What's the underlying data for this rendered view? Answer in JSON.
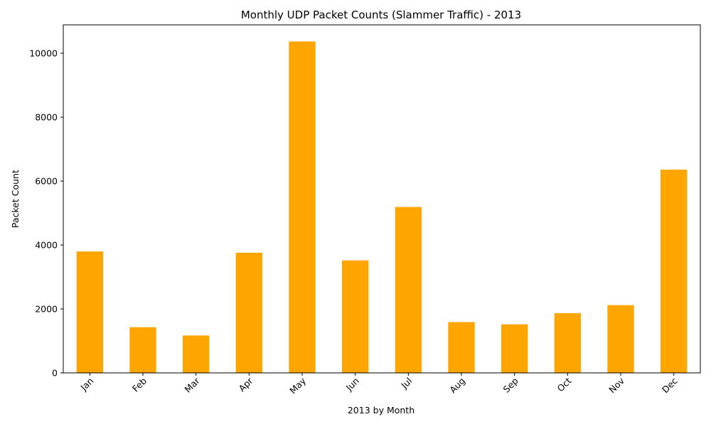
{
  "chart_data": {
    "type": "bar",
    "title": "Monthly UDP Packet Counts (Slammer Traffic) - 2013",
    "xlabel": "2013 by Month",
    "ylabel": "Packet Count",
    "categories": [
      "Jan",
      "Feb",
      "Mar",
      "Apr",
      "May",
      "Jun",
      "Jul",
      "Aug",
      "Sep",
      "Oct",
      "Nov",
      "Dec"
    ],
    "values": [
      3800,
      1430,
      1170,
      3760,
      10370,
      3520,
      5190,
      1590,
      1520,
      1870,
      2120,
      6360
    ],
    "ylim": [
      0,
      10889
    ],
    "yticks": [
      0,
      2000,
      4000,
      6000,
      8000,
      10000
    ],
    "grid": false,
    "bar_color": "#FFA500"
  }
}
